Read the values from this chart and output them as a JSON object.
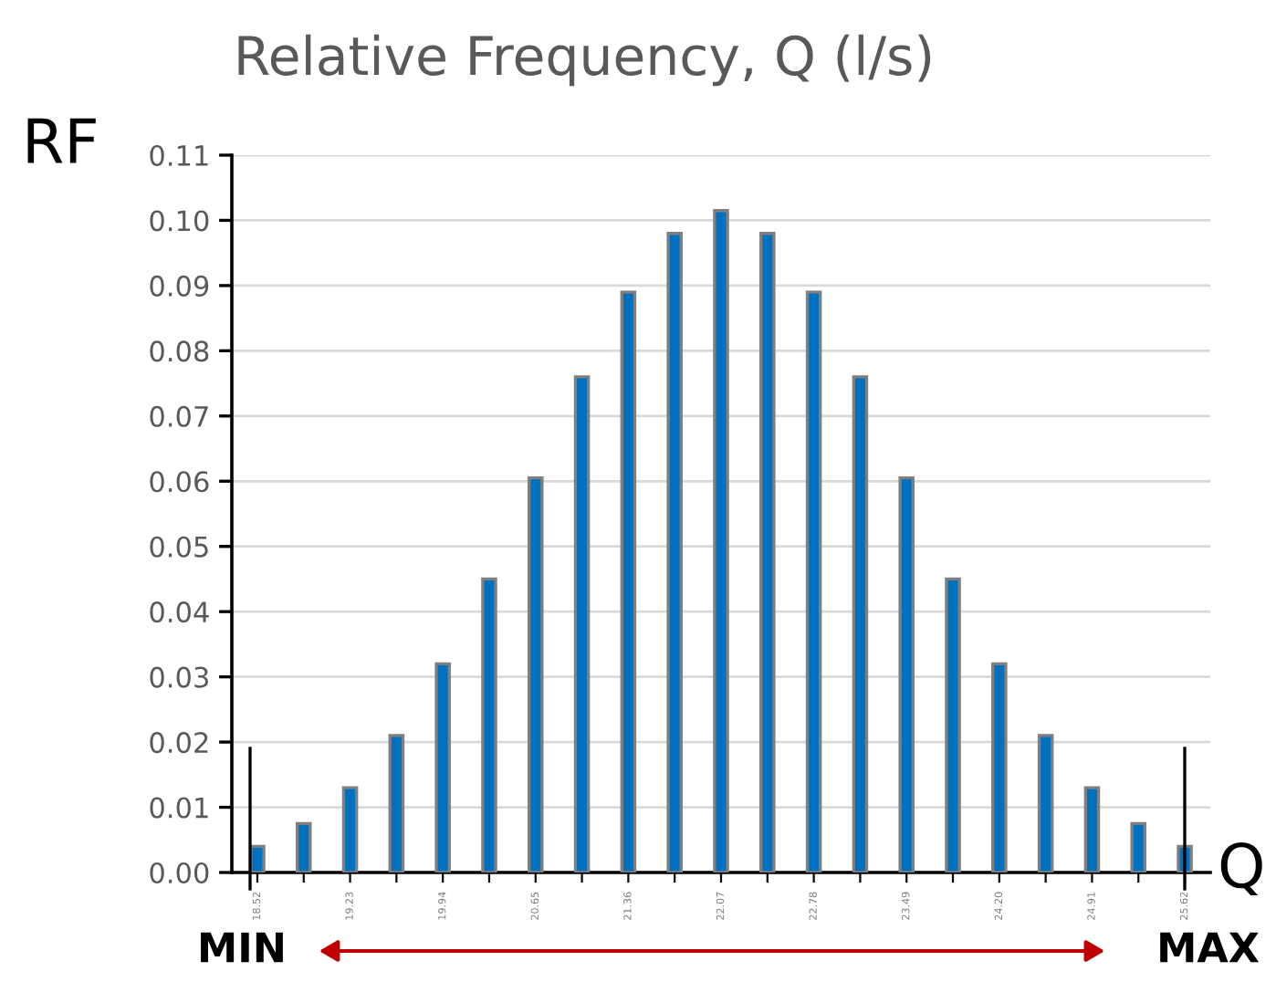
{
  "chart_data": {
    "type": "bar",
    "title": "Relative Frequency, Q (l/s)",
    "ylabel": "RF",
    "xlabel": "Q",
    "categories": [
      "18.52",
      null,
      "19.23",
      null,
      "19.94",
      null,
      "20.65",
      null,
      "21.36",
      null,
      "22.07",
      null,
      "22.78",
      null,
      "23.49",
      null,
      "24.20",
      null,
      "24.91",
      null,
      "25.62"
    ],
    "values": [
      0.004,
      0.0075,
      0.013,
      0.021,
      0.032,
      0.045,
      0.0605,
      0.076,
      0.089,
      0.098,
      0.1015,
      0.098,
      0.089,
      0.076,
      0.0605,
      0.045,
      0.032,
      0.021,
      0.013,
      0.0075,
      0.004
    ],
    "color": "#0070c0",
    "ylim": [
      0,
      0.11
    ],
    "yticks": [
      {
        "value": 0,
        "label": "0.00"
      },
      {
        "value": 0.01,
        "label": "0.01"
      },
      {
        "value": 0.02,
        "label": "0.02"
      },
      {
        "value": 0.03,
        "label": "0.03"
      },
      {
        "value": 0.04,
        "label": "0.04"
      },
      {
        "value": 0.05,
        "label": "0.05"
      },
      {
        "value": 0.06,
        "label": "0.06"
      },
      {
        "value": 0.07,
        "label": "0.07"
      },
      {
        "value": 0.08,
        "label": "0.08"
      },
      {
        "value": 0.09,
        "label": "0.09"
      },
      {
        "value": 0.1,
        "label": "0.10"
      },
      {
        "value": 0.11,
        "label": "0.11"
      }
    ],
    "grid": "y",
    "legend": false,
    "annotations": [
      "MIN",
      "MAX"
    ]
  }
}
